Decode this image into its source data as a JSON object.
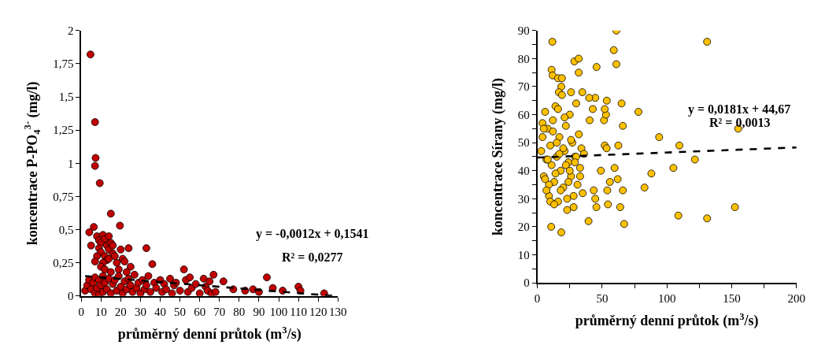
{
  "chart_data": [
    {
      "type": "scatter",
      "xlabel": "průměrný denní průtok (m$^{3}$/s)",
      "ylabel": "koncentrace P-PO$_{4}$$^{3-}$ (mg/l)",
      "xlim": [
        0,
        130
      ],
      "xticks": [
        0,
        10,
        20,
        30,
        40,
        50,
        60,
        70,
        80,
        90,
        100,
        110,
        120,
        130
      ],
      "ylim": [
        0,
        2
      ],
      "yticks": [
        0,
        {
          "value": 0.25,
          "label": "0,25"
        },
        {
          "value": 0.5,
          "label": "0,5"
        },
        {
          "value": 0.75,
          "label": "0,75"
        },
        1,
        {
          "value": 1.25,
          "label": "1,25"
        },
        {
          "value": 1.5,
          "label": "1,5"
        },
        {
          "value": 1.75,
          "label": "1,75"
        },
        2
      ],
      "marker": "circle",
      "annotations": [
        "y = -0,0012x + 0,1541",
        "R² = 0,0277"
      ],
      "series": [
        {
          "color": "#c00000",
          "x": [
            4.7,
            7.0,
            7.3,
            7.0,
            9.4,
            15,
            6.4,
            19.6,
            4.1,
            8,
            9,
            10,
            11,
            12,
            13,
            14,
            15,
            9,
            10,
            12,
            13,
            11,
            14,
            16,
            17,
            18,
            20,
            21,
            22,
            24,
            25,
            8,
            7,
            10,
            12,
            15,
            19,
            23,
            33,
            36,
            5,
            14,
            16,
            2,
            3,
            4,
            5,
            6,
            7,
            7,
            8,
            9,
            9,
            10,
            11,
            11,
            12,
            13,
            14,
            15,
            16,
            17,
            18,
            19,
            20,
            21,
            22,
            23,
            24,
            25,
            26,
            27,
            28,
            29,
            30,
            31,
            32,
            33,
            34,
            35,
            37,
            38,
            40,
            41,
            42,
            43,
            45,
            46,
            47,
            48,
            50,
            52,
            53,
            54,
            55,
            56,
            58,
            60,
            62,
            63,
            64,
            65,
            66,
            67,
            68,
            72,
            77,
            83,
            87,
            90,
            94,
            97,
            102,
            110,
            111,
            123
          ],
          "values": [
            1.82,
            1.31,
            1.04,
            0.98,
            0.85,
            0.62,
            0.52,
            0.53,
            0.48,
            0.45,
            0.42,
            0.4,
            0.46,
            0.43,
            0.38,
            0.35,
            0.4,
            0.36,
            0.33,
            0.3,
            0.27,
            0.25,
            0.28,
            0.32,
            0.3,
            0.25,
            0.35,
            0.28,
            0.26,
            0.36,
            0.22,
            0.3,
            0.26,
            0.22,
            0.2,
            0.18,
            0.2,
            0.18,
            0.36,
            0.24,
            0.38,
            0.45,
            0.38,
            0.04,
            0.08,
            0.12,
            0.05,
            0.1,
            0.02,
            0.14,
            0.06,
            0.01,
            0.12,
            0.08,
            0.03,
            0.15,
            0.1,
            0.05,
            0.13,
            0.02,
            0.09,
            0.12,
            0.04,
            0.15,
            0.07,
            0.02,
            0.11,
            0.05,
            0.13,
            0.08,
            0.03,
            0.16,
            0.06,
            0.1,
            0.02,
            0.12,
            0.05,
            0.08,
            0.15,
            0.03,
            0.1,
            0.06,
            0.12,
            0.03,
            0.09,
            0.05,
            0.13,
            0.02,
            0.08,
            0.1,
            0.04,
            0.2,
            0.12,
            0.03,
            0.14,
            0.06,
            0.09,
            0.02,
            0.13,
            0.07,
            0.04,
            0.11,
            0.02,
            0.16,
            0.03,
            0.11,
            0.05,
            0.04,
            0.05,
            0.03,
            0.14,
            0.06,
            0.04,
            0.07,
            0.04,
            0.02
          ]
        },
        {
          "type": "line",
          "color": "#000000",
          "line_style": "dashed",
          "marker": "none",
          "x": [
            2,
            128
          ],
          "values": [
            0.15,
            0.0
          ]
        }
      ]
    },
    {
      "type": "scatter",
      "xlabel": "průměrný denní průtok (m$^{3}$/s)",
      "ylabel": "koncentrace Sírany (mg/l)",
      "xlim": [
        0,
        200
      ],
      "xticks": [
        0,
        {
          "value": 25,
          "label": null
        },
        50,
        {
          "value": 75,
          "label": null
        },
        100,
        {
          "value": 125,
          "label": null
        },
        150,
        {
          "value": 175,
          "label": null
        },
        200
      ],
      "ylim": [
        0,
        90
      ],
      "yticks": [
        0,
        {
          "value": 5,
          "label": null
        },
        10,
        {
          "value": 15,
          "label": null
        },
        20,
        {
          "value": 25,
          "label": null
        },
        30,
        {
          "value": 35,
          "label": null
        },
        40,
        {
          "value": 45,
          "label": null
        },
        50,
        {
          "value": 55,
          "label": null
        },
        60,
        {
          "value": 65,
          "label": null
        },
        70,
        {
          "value": 75,
          "label": null
        },
        80,
        {
          "value": 85,
          "label": null
        },
        90
      ],
      "marker": "circle",
      "annotations": [
        "y = 0,0181x + 44,67",
        "R² = 0,0013"
      ],
      "series": [
        {
          "color": "#ffc000",
          "x": [
            61,
            11.6,
            131,
            59,
            61,
            28.6,
            31.9,
            31.9,
            45.7,
            11,
            11.8,
            16,
            19,
            18.5,
            16.6,
            26,
            34.7,
            155,
            78,
            65,
            94,
            109.6,
            121.6,
            105,
            88,
            82.7,
            108.8,
            131,
            152.5,
            67,
            10.7,
            18.5,
            39.5,
            64,
            66,
            62,
            59.6,
            52,
            53.5,
            62.5,
            51.5,
            53,
            52,
            53.6,
            66,
            54,
            54.5,
            56,
            49,
            44.7,
            45.6,
            43.5,
            42.8,
            40.4,
            44.7,
            40,
            3,
            4,
            5,
            6,
            7,
            8,
            9,
            10,
            11,
            12,
            13,
            14,
            15,
            16,
            17,
            18,
            19,
            20,
            21,
            22,
            23,
            24,
            25,
            26,
            27,
            28,
            29,
            30,
            31,
            32,
            33,
            34,
            35,
            36,
            4,
            6,
            8,
            10,
            12,
            14,
            16,
            18,
            20,
            22,
            24,
            26,
            28,
            30,
            5,
            9,
            13,
            17,
            21,
            25,
            29,
            33,
            7,
            15,
            23
          ],
          "values": [
            90,
            86,
            86,
            83,
            78,
            79,
            80,
            75,
            77,
            76,
            74,
            73,
            73,
            70,
            68,
            68,
            68,
            55,
            61,
            64,
            52,
            49,
            44,
            41,
            39,
            34,
            24,
            23,
            27,
            21,
            20,
            18,
            22,
            27,
            33,
            37,
            41,
            49,
            48,
            49,
            58,
            60,
            62,
            65,
            56,
            33,
            28,
            36,
            40,
            30,
            27,
            33,
            62,
            58,
            66,
            66,
            47,
            52,
            38,
            61,
            44,
            55,
            31,
            49,
            42,
            58,
            36,
            63,
            45,
            29,
            52,
            40,
            67,
            34,
            47,
            56,
            30,
            43,
            60,
            38,
            50,
            27,
            45,
            64,
            35,
            53,
            41,
            48,
            32,
            46,
            57,
            37,
            44,
            29,
            54,
            39,
            62,
            33,
            48,
            42,
            36,
            51,
            31,
            45,
            55,
            35,
            28,
            46,
            59,
            40,
            43,
            38,
            33,
            50,
            26
          ]
        },
        {
          "type": "line",
          "color": "#000000",
          "line_style": "dashed",
          "marker": "none",
          "x": [
            0,
            200
          ],
          "values": [
            44.7,
            48.3
          ]
        }
      ]
    }
  ]
}
